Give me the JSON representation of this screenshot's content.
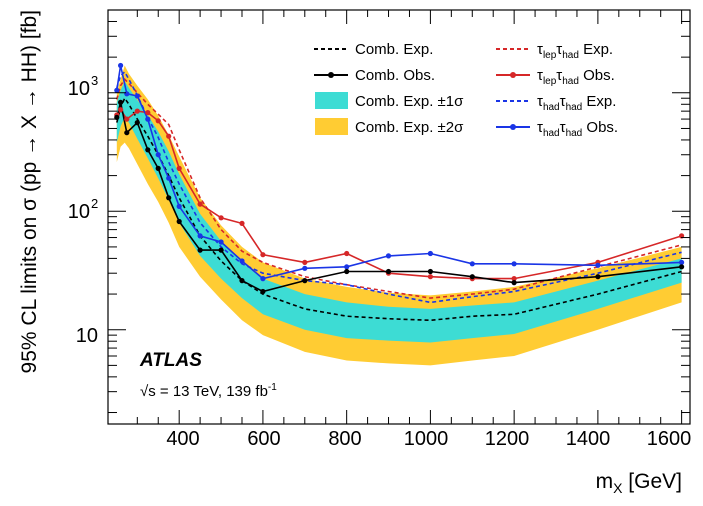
{
  "chart_data": {
    "type": "line",
    "yscale": "log",
    "xlabel": "m",
    "xlabel_sub": "X",
    "xlabel_unit": "[GeV]",
    "ylabel": "95% CL limits on σ (pp → X → HH) [fb]",
    "xlim": [
      230,
      1620
    ],
    "ylim": [
      1.6,
      5000
    ],
    "xticks": [
      400,
      600,
      800,
      1000,
      1200,
      1400,
      1600
    ],
    "xtick_labels": [
      "400",
      "600",
      "800",
      "1000",
      "1200",
      "1400",
      "1600"
    ],
    "yticks": [
      10,
      100,
      1000
    ],
    "ytick_labels": [
      "10",
      "10",
      "10"
    ],
    "ytick_exponents": [
      "",
      "2",
      "3"
    ],
    "experiment": "ATLAS",
    "energy_prefix": "√s = 13 TeV, 139 fb",
    "energy_sup": "-1",
    "band_2sigma": {
      "name": "Comb. Exp. ±2σ",
      "color": "#ffcc33",
      "x": [
        251,
        260,
        270,
        280,
        300,
        325,
        350,
        375,
        400,
        450,
        500,
        550,
        600,
        700,
        800,
        900,
        1000,
        1100,
        1200,
        1400,
        1600
      ],
      "lower": [
        260,
        350,
        380,
        340,
        250,
        170,
        120,
        80,
        50,
        28,
        18,
        12,
        9,
        6.5,
        5.5,
        5.2,
        5.0,
        5.5,
        6.0,
        10,
        17
      ],
      "upper": [
        1000,
        1300,
        1700,
        1450,
        1150,
        880,
        640,
        440,
        290,
        130,
        76,
        50,
        37,
        27,
        23,
        20.5,
        19.5,
        21,
        23,
        33,
        50
      ]
    },
    "band_1sigma": {
      "name": "Comb. Exp. ±1σ",
      "color": "#3ddcd4",
      "x": [
        251,
        260,
        270,
        280,
        300,
        325,
        350,
        375,
        400,
        450,
        500,
        550,
        600,
        700,
        800,
        900,
        1000,
        1100,
        1200,
        1400,
        1600
      ],
      "lower": [
        380,
        520,
        620,
        560,
        410,
        280,
        190,
        125,
        80,
        42,
        27,
        18.5,
        13.5,
        10,
        8.5,
        8.1,
        7.8,
        8.5,
        9.2,
        15,
        25
      ],
      "upper": [
        830,
        1050,
        1250,
        1100,
        870,
        650,
        470,
        320,
        205,
        95,
        56,
        37,
        27,
        20,
        17,
        15.6,
        15,
        16,
        17,
        26,
        40
      ]
    },
    "series": [
      {
        "name": "Comb. Exp.",
        "color": "#000000",
        "dash": "4,3",
        "marker": false,
        "x": [
          251,
          260,
          270,
          280,
          300,
          325,
          350,
          375,
          400,
          450,
          500,
          550,
          600,
          700,
          800,
          900,
          1000,
          1100,
          1200,
          1400,
          1600
        ],
        "values": [
          560,
          750,
          900,
          800,
          600,
          430,
          300,
          200,
          130,
          62,
          38,
          26,
          20,
          15,
          13,
          12.4,
          12,
          13,
          13.5,
          20,
          31
        ]
      },
      {
        "name": "Comb. Obs.",
        "color": "#000000",
        "dash": "",
        "marker": true,
        "x": [
          251,
          260,
          275,
          300,
          325,
          350,
          375,
          400,
          450,
          500,
          550,
          600,
          700,
          800,
          900,
          1000,
          1100,
          1200,
          1400,
          1600
        ],
        "values": [
          620,
          830,
          460,
          560,
          330,
          230,
          130,
          82,
          47,
          47,
          26,
          21,
          26,
          31,
          31,
          31,
          28,
          25,
          28,
          34
        ]
      },
      {
        "name": "τlepτhad Exp.",
        "sub_a": "lep",
        "sub_b": "had",
        "color": "#d62728",
        "dash": "4,3",
        "marker": false,
        "x": [
          251,
          260,
          270,
          280,
          300,
          325,
          350,
          375,
          400,
          450,
          500,
          550,
          600,
          700,
          800,
          900,
          1000,
          1100,
          1200,
          1400,
          1600
        ],
        "values": [
          880,
          1150,
          1300,
          1200,
          1000,
          800,
          660,
          540,
          330,
          130,
          70,
          46,
          37,
          28,
          24,
          21,
          18.5,
          20,
          22,
          34,
          52
        ]
      },
      {
        "name": "τlepτhad Obs.",
        "sub_a": "lep",
        "sub_b": "had",
        "color": "#d62728",
        "dash": "",
        "marker": true,
        "x": [
          251,
          260,
          275,
          300,
          325,
          350,
          375,
          400,
          450,
          500,
          550,
          600,
          700,
          800,
          900,
          1000,
          1100,
          1200,
          1400,
          1600
        ],
        "values": [
          650,
          720,
          600,
          700,
          680,
          580,
          430,
          230,
          115,
          88,
          79,
          43,
          37,
          44,
          30,
          28,
          27,
          27,
          37,
          62
        ]
      },
      {
        "name": "τhadτhad Exp.",
        "sub_a": "had",
        "sub_b": "had",
        "color": "#1a35e6",
        "dash": "4,3",
        "marker": false,
        "x": [
          251,
          260,
          270,
          280,
          300,
          325,
          350,
          375,
          400,
          450,
          500,
          550,
          600,
          700,
          800,
          900,
          1000,
          1100,
          1200,
          1400,
          1600
        ],
        "values": [
          1100,
          1400,
          1500,
          1300,
          950,
          620,
          420,
          260,
          170,
          80,
          50,
          36,
          30,
          26,
          24,
          20,
          17,
          19,
          21,
          30,
          45
        ]
      },
      {
        "name": "τhadτhad Obs.",
        "sub_a": "had",
        "sub_b": "had",
        "color": "#1a35e6",
        "dash": "",
        "marker": true,
        "x": [
          251,
          260,
          275,
          300,
          325,
          350,
          375,
          400,
          450,
          500,
          550,
          600,
          700,
          800,
          900,
          1000,
          1100,
          1200,
          1400,
          1600
        ],
        "values": [
          1050,
          1700,
          980,
          940,
          600,
          300,
          190,
          110,
          62,
          55,
          38,
          27,
          33,
          34,
          42,
          44,
          36,
          36,
          35,
          37
        ]
      }
    ]
  }
}
